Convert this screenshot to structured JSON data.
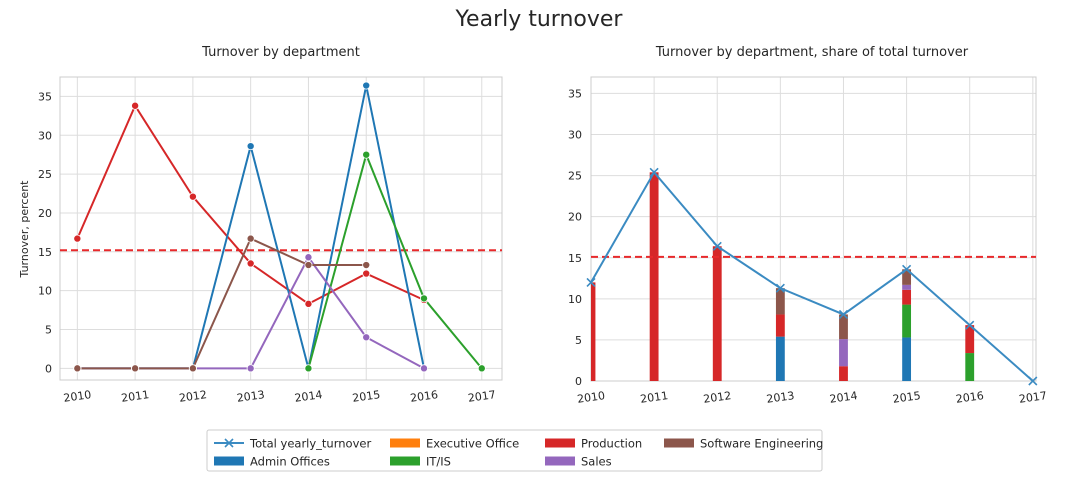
{
  "figure": {
    "title": "Yearly turnover",
    "colors": {
      "admin": "#1f77b4",
      "exec": "#ff7f0e",
      "itis": "#2ca02c",
      "prod": "#d62728",
      "sales": "#9467bd",
      "soft": "#8c564b",
      "total": "#3b8bc2",
      "ref": "#e8292b"
    }
  },
  "chart_data": [
    {
      "type": "line",
      "title": "Turnover by department",
      "ylabel": "Turnover, percent",
      "xlabel": "",
      "x": [
        2010,
        2011,
        2012,
        2013,
        2014,
        2015,
        2016,
        2017
      ],
      "xlim": [
        2009.7,
        2017.35
      ],
      "ylim": [
        -1.5,
        37.5
      ],
      "yticks": [
        0,
        5,
        10,
        15,
        20,
        25,
        30,
        35
      ],
      "grid": true,
      "reference_line": 15.2,
      "series": [
        {
          "name": "Production",
          "color": "#d62728",
          "x": [
            2010,
            2011,
            2012,
            2013,
            2014,
            2015,
            2016
          ],
          "values": [
            16.7,
            33.8,
            22.1,
            13.5,
            8.3,
            12.2,
            8.8
          ]
        },
        {
          "name": "Admin Offices",
          "color": "#1f77b4",
          "x": [
            2010,
            2011,
            2012,
            2013,
            2014,
            2015,
            2016
          ],
          "values": [
            0,
            0,
            0,
            28.6,
            0,
            36.4,
            0
          ]
        },
        {
          "name": "IT/IS",
          "color": "#2ca02c",
          "x": [
            2014,
            2015,
            2016,
            2017
          ],
          "values": [
            0,
            27.5,
            9.0,
            0
          ]
        },
        {
          "name": "Sales",
          "color": "#9467bd",
          "x": [
            2010,
            2011,
            2012,
            2013,
            2014,
            2015,
            2016
          ],
          "values": [
            0,
            0,
            0,
            0,
            14.3,
            4.0,
            0
          ]
        },
        {
          "name": "Software Engineering",
          "color": "#8c564b",
          "x": [
            2010,
            2011,
            2012,
            2013,
            2014,
            2015
          ],
          "values": [
            0,
            0,
            0,
            16.7,
            13.3,
            13.3
          ]
        }
      ]
    },
    {
      "type": "bar",
      "title": "Turnover by department, share of total turnover",
      "xlabel": "",
      "ylabel": "",
      "x": [
        2010,
        2011,
        2012,
        2013,
        2014,
        2015,
        2016,
        2017
      ],
      "xlim": [
        2010,
        2017.05
      ],
      "ylim": [
        0,
        37
      ],
      "yticks": [
        0,
        5,
        10,
        15,
        20,
        25,
        30,
        35
      ],
      "grid": true,
      "reference_line": 15.1,
      "stacked": true,
      "bar_width": 0.14,
      "series": [
        {
          "name": "Admin Offices",
          "color": "#1f77b4",
          "values": [
            0,
            0,
            0,
            5.4,
            0,
            5.3,
            0,
            0
          ]
        },
        {
          "name": "Executive Office",
          "color": "#ff7f0e",
          "values": [
            0,
            0,
            0,
            0,
            0,
            0,
            0,
            0
          ]
        },
        {
          "name": "IT/IS",
          "color": "#2ca02c",
          "values": [
            0,
            0,
            0,
            0,
            0,
            4.0,
            3.4,
            0
          ]
        },
        {
          "name": "Production",
          "color": "#d62728",
          "values": [
            12.0,
            25.4,
            16.4,
            2.7,
            1.8,
            1.8,
            3.4,
            0
          ]
        },
        {
          "name": "Sales",
          "color": "#9467bd",
          "values": [
            0,
            0,
            0,
            0,
            3.3,
            0.6,
            0,
            0
          ]
        },
        {
          "name": "Software Engineering",
          "color": "#8c564b",
          "values": [
            0,
            0,
            0,
            3.2,
            3.0,
            1.9,
            0,
            0
          ]
        }
      ],
      "line_series": {
        "name": "Total yearly_turnover",
        "color": "#3b8bc2",
        "values": [
          12.0,
          25.4,
          16.4,
          11.3,
          8.1,
          13.6,
          6.8,
          0
        ]
      }
    }
  ],
  "legend": {
    "placement": "bottom-center",
    "items": [
      {
        "label": "Total yearly_turnover",
        "color": "#3b8bc2",
        "kind": "line"
      },
      {
        "label": "Admin Offices",
        "color": "#1f77b4",
        "kind": "patch"
      },
      {
        "label": "Executive Office",
        "color": "#ff7f0e",
        "kind": "patch"
      },
      {
        "label": "IT/IS",
        "color": "#2ca02c",
        "kind": "patch"
      },
      {
        "label": "Production",
        "color": "#d62728",
        "kind": "patch"
      },
      {
        "label": "Sales",
        "color": "#9467bd",
        "kind": "patch"
      },
      {
        "label": "Software Engineering",
        "color": "#8c564b",
        "kind": "patch"
      }
    ]
  }
}
